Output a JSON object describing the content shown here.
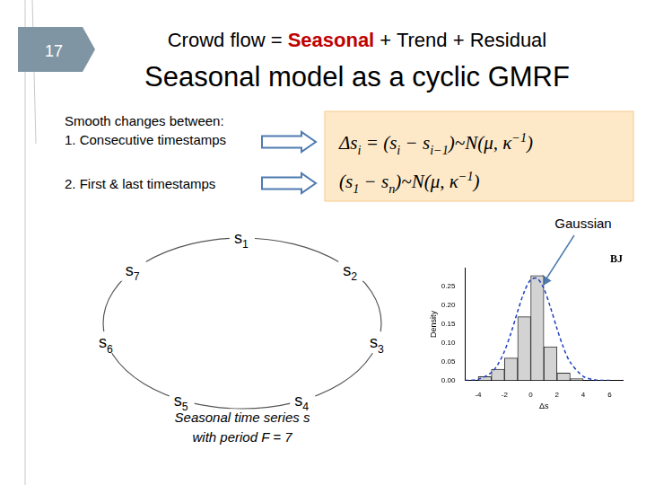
{
  "slide_number": "17",
  "title_line1": [
    {
      "text": "Crowd flow = ",
      "color": "#000000"
    },
    {
      "text": "Seasonal",
      "color": "#c00000"
    },
    {
      "text": " + Trend + Residual",
      "color": "#000000"
    }
  ],
  "title": "Seasonal model as a cyclic GMRF",
  "body": {
    "heading": "Smooth changes between:",
    "items": [
      "1. Consecutive timestamps",
      "2. First & last timestamps"
    ]
  },
  "formulas": [
    [
      {
        "t": "Δs"
      },
      {
        "t": "i",
        "sub": true
      },
      {
        "t": " = (s"
      },
      {
        "t": "i",
        "sub": true
      },
      {
        "t": " − s"
      },
      {
        "t": "i−1",
        "sub": true
      },
      {
        "t": ")~N(μ, κ"
      },
      {
        "t": "−1",
        "sup": true
      },
      {
        "t": ")"
      }
    ],
    [
      {
        "t": "(s"
      },
      {
        "t": "1",
        "sub": true
      },
      {
        "t": " − s"
      },
      {
        "t": "n",
        "sub": true
      },
      {
        "t": ")~N(μ, κ"
      },
      {
        "t": "−1",
        "sup": true
      },
      {
        "t": ")"
      }
    ]
  ],
  "cycle": {
    "nodes": [
      {
        "name": "s",
        "sub": "1"
      },
      {
        "name": "s",
        "sub": "2"
      },
      {
        "name": "s",
        "sub": "3"
      },
      {
        "name": "s",
        "sub": "4"
      },
      {
        "name": "s",
        "sub": "5"
      },
      {
        "name": "s",
        "sub": "6"
      },
      {
        "name": "s",
        "sub": "7"
      }
    ],
    "caption": [
      "Seasonal time series s",
      "with period F = 7"
    ]
  },
  "annotation": "Gaussian",
  "chart_data": {
    "type": "histogram",
    "title": "BJ",
    "x_label": "Δs",
    "y_label": "Density",
    "bins": [
      -4,
      -3,
      -2,
      -1,
      0,
      1,
      2,
      3,
      4
    ],
    "values": [
      0.01,
      0.03,
      0.06,
      0.17,
      0.28,
      0.09,
      0.02,
      0.005
    ],
    "color": "#d3d3d3",
    "curve": {
      "x": [
        -5,
        -4,
        -3,
        -2.5,
        -2,
        -1.5,
        -1,
        -0.5,
        0,
        0.5,
        1,
        1.5,
        2,
        2.5,
        3,
        4,
        5,
        6
      ],
      "values": [
        0.0,
        0.003,
        0.021,
        0.043,
        0.078,
        0.127,
        0.184,
        0.236,
        0.269,
        0.272,
        0.245,
        0.195,
        0.138,
        0.087,
        0.049,
        0.011,
        0.001,
        0.0
      ],
      "color": "#1f3fbf",
      "line_style": "dashed"
    },
    "xlim": [
      -5,
      7
    ],
    "xticks": [
      -4,
      -2,
      0,
      2,
      4,
      6
    ],
    "ylim": [
      0,
      0.3
    ],
    "yticks": [
      {
        "value": 0,
        "label": "0.00"
      },
      {
        "value": 0.05,
        "label": "0.05"
      },
      {
        "value": 0.1,
        "label": "0.10"
      },
      {
        "value": 0.15,
        "label": "0.15"
      },
      {
        "value": 0.2,
        "label": "0.20"
      },
      {
        "value": 0.25,
        "label": "0.25"
      }
    ],
    "grid": false
  }
}
